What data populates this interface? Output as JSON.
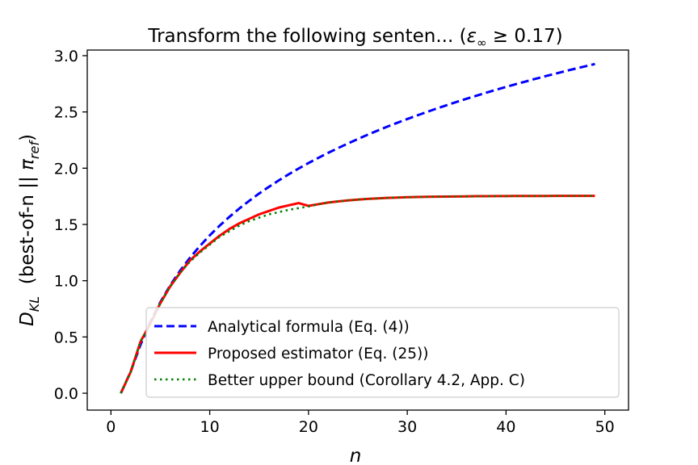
{
  "chart_data": {
    "type": "line",
    "title": "Transform the following senten... (ε∞ ≥ 0.17)",
    "title_main": "Transform the following senten... (",
    "title_eps": "ε",
    "title_eps_sub": "∞",
    "title_rest": " ≥ 0.17)",
    "xlabel": "n",
    "ylabel": "D_KL (best-of-n || π_ref)",
    "ylabel_parts": {
      "d": "D",
      "d_sub": "KL",
      "mid": "  (best-of-n || ",
      "pi": "π",
      "pi_sub": "ref",
      "end": ")"
    },
    "xlim": [
      -2.4,
      52.4
    ],
    "ylim": [
      -0.15,
      3.05
    ],
    "xticks": [
      0,
      10,
      20,
      30,
      40,
      50
    ],
    "xtick_labels": [
      "0",
      "10",
      "20",
      "30",
      "40",
      "50"
    ],
    "yticks": [
      0.0,
      0.5,
      1.0,
      1.5,
      2.0,
      2.5,
      3.0
    ],
    "ytick_labels": [
      "0.0",
      "0.5",
      "1.0",
      "1.5",
      "2.0",
      "2.5",
      "3.0"
    ],
    "grid": false,
    "legend_position": "lower-right",
    "series": [
      {
        "name": "Analytical formula (Eq. (4))",
        "color": "#0000ff",
        "style": "dashed",
        "x": [
          1,
          2,
          3,
          4,
          5,
          6,
          7,
          8,
          9,
          10,
          11,
          12,
          13,
          14,
          15,
          16,
          17,
          18,
          19,
          20,
          21,
          22,
          23,
          24,
          25,
          26,
          27,
          28,
          29,
          30,
          31,
          32,
          33,
          34,
          35,
          36,
          37,
          38,
          39,
          40,
          41,
          42,
          43,
          44,
          45,
          46,
          47,
          48,
          49
        ],
        "y": [
          0.0,
          0.193,
          0.432,
          0.636,
          0.809,
          0.959,
          1.089,
          1.204,
          1.308,
          1.403,
          1.489,
          1.568,
          1.642,
          1.71,
          1.775,
          1.835,
          1.892,
          1.946,
          1.997,
          2.046,
          2.092,
          2.137,
          2.179,
          2.22,
          2.259,
          2.298,
          2.334,
          2.37,
          2.404,
          2.437,
          2.469,
          2.5,
          2.531,
          2.56,
          2.589,
          2.617,
          2.644,
          2.671,
          2.697,
          2.722,
          2.747,
          2.771,
          2.795,
          2.818,
          2.84,
          2.863,
          2.884,
          2.905,
          2.926
        ]
      },
      {
        "name": "Proposed estimator (Eq. (25))",
        "color": "#ff0000",
        "style": "solid",
        "x": [
          1,
          2,
          3,
          4,
          5,
          6,
          7,
          8,
          9,
          10,
          11,
          12,
          13,
          14,
          15,
          16,
          17,
          18,
          19,
          20,
          21,
          22,
          23,
          24,
          25,
          26,
          27,
          28,
          29,
          30,
          31,
          32,
          33,
          34,
          35,
          36,
          37,
          38,
          39,
          40,
          41,
          42,
          43,
          44,
          45,
          46,
          47,
          48,
          49
        ],
        "y": [
          0.0,
          0.19,
          0.46,
          0.62,
          0.8,
          0.95,
          1.07,
          1.18,
          1.26,
          1.33,
          1.4,
          1.46,
          1.51,
          1.55,
          1.59,
          1.62,
          1.65,
          1.67,
          1.69,
          1.665,
          1.68,
          1.695,
          1.705,
          1.714,
          1.721,
          1.727,
          1.732,
          1.736,
          1.739,
          1.742,
          1.744,
          1.746,
          1.747,
          1.748,
          1.749,
          1.75,
          1.751,
          1.751,
          1.752,
          1.752,
          1.753,
          1.753,
          1.753,
          1.753,
          1.754,
          1.754,
          1.754,
          1.754,
          1.754
        ]
      },
      {
        "name": "Better upper bound (Corollary 4.2, App. C)",
        "color": "#008000",
        "style": "dotted",
        "x": [
          1,
          2,
          3,
          4,
          5,
          6,
          7,
          8,
          9,
          10,
          11,
          12,
          13,
          14,
          15,
          16,
          17,
          18,
          19,
          20,
          21,
          22,
          23,
          24,
          25,
          26,
          27,
          28,
          29,
          30,
          31,
          32,
          33,
          34,
          35,
          36,
          37,
          38,
          39,
          40,
          41,
          42,
          43,
          44,
          45,
          46,
          47,
          48,
          49
        ],
        "y": [
          0.0,
          0.19,
          0.46,
          0.62,
          0.8,
          0.95,
          1.07,
          1.17,
          1.25,
          1.32,
          1.39,
          1.44,
          1.49,
          1.53,
          1.56,
          1.59,
          1.61,
          1.63,
          1.645,
          1.66,
          1.68,
          1.695,
          1.705,
          1.714,
          1.721,
          1.727,
          1.732,
          1.736,
          1.739,
          1.742,
          1.744,
          1.746,
          1.747,
          1.748,
          1.749,
          1.75,
          1.751,
          1.751,
          1.752,
          1.752,
          1.753,
          1.753,
          1.753,
          1.753,
          1.754,
          1.754,
          1.754,
          1.754,
          1.754
        ]
      }
    ]
  }
}
